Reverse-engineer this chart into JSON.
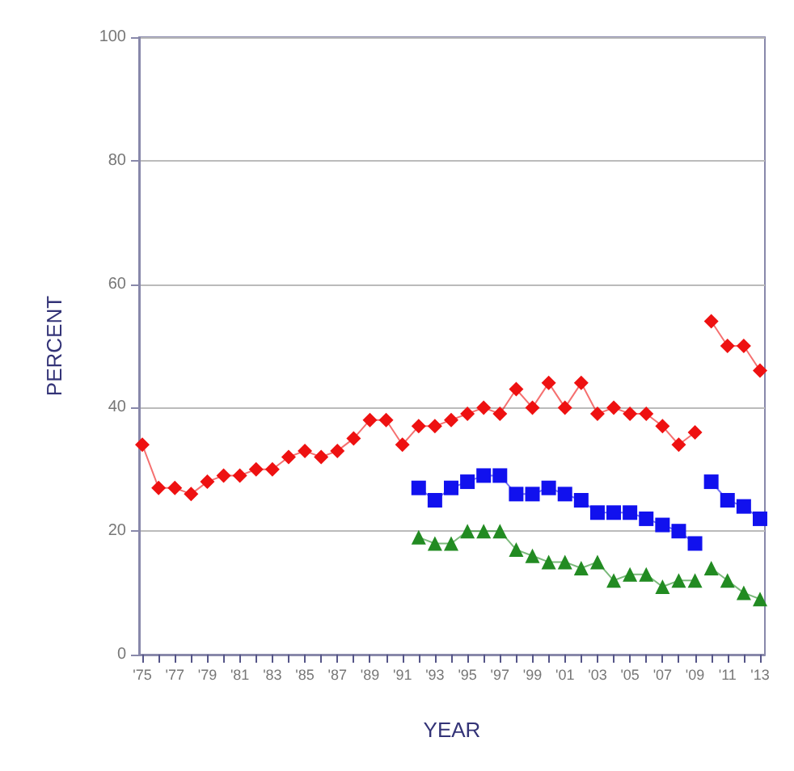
{
  "chart_data": {
    "type": "line",
    "xlabel": "YEAR",
    "ylabel": "PERCENT",
    "xlim": [
      1974.8,
      2013.3
    ],
    "ylim": [
      0,
      100
    ],
    "yticks": [
      0,
      20,
      40,
      60,
      80,
      100
    ],
    "xticks": [
      {
        "value": 1975,
        "label": "'75"
      },
      {
        "value": 1976,
        "label": null
      },
      {
        "value": 1977,
        "label": "'77"
      },
      {
        "value": 1978,
        "label": null
      },
      {
        "value": 1979,
        "label": "'79"
      },
      {
        "value": 1980,
        "label": null
      },
      {
        "value": 1981,
        "label": "'81"
      },
      {
        "value": 1982,
        "label": null
      },
      {
        "value": 1983,
        "label": "'83"
      },
      {
        "value": 1984,
        "label": null
      },
      {
        "value": 1985,
        "label": "'85"
      },
      {
        "value": 1986,
        "label": null
      },
      {
        "value": 1987,
        "label": "'87"
      },
      {
        "value": 1988,
        "label": null
      },
      {
        "value": 1989,
        "label": "'89"
      },
      {
        "value": 1990,
        "label": null
      },
      {
        "value": 1991,
        "label": "'91"
      },
      {
        "value": 1992,
        "label": null
      },
      {
        "value": 1993,
        "label": "'93"
      },
      {
        "value": 1994,
        "label": null
      },
      {
        "value": 1995,
        "label": "'95"
      },
      {
        "value": 1996,
        "label": null
      },
      {
        "value": 1997,
        "label": "'97"
      },
      {
        "value": 1998,
        "label": null
      },
      {
        "value": 1999,
        "label": "'99"
      },
      {
        "value": 2000,
        "label": null
      },
      {
        "value": 2001,
        "label": "'01"
      },
      {
        "value": 2002,
        "label": null
      },
      {
        "value": 2003,
        "label": "'03"
      },
      {
        "value": 2004,
        "label": null
      },
      {
        "value": 2005,
        "label": "'05"
      },
      {
        "value": 2006,
        "label": null
      },
      {
        "value": 2007,
        "label": "'07"
      },
      {
        "value": 2008,
        "label": null
      },
      {
        "value": 2009,
        "label": "'09"
      },
      {
        "value": 2010,
        "label": null
      },
      {
        "value": 2011,
        "label": "'11"
      },
      {
        "value": 2012,
        "label": null
      },
      {
        "value": 2013,
        "label": "'13"
      }
    ],
    "grid": "y",
    "line_style": "solid",
    "series": [
      {
        "color": "#ee1111",
        "marker": "diamond",
        "x": [
          1975,
          1976,
          1977,
          1978,
          1979,
          1980,
          1981,
          1982,
          1983,
          1984,
          1985,
          1986,
          1987,
          1988,
          1989,
          1990,
          1991,
          1992,
          1993,
          1994,
          1995,
          1996,
          1997,
          1998,
          1999,
          2000,
          2001,
          2002,
          2003,
          2004,
          2005,
          2006,
          2007,
          2008,
          2009
        ],
        "values": [
          34,
          27,
          27,
          26,
          28,
          29,
          29,
          30,
          30,
          32,
          33,
          32,
          33,
          35,
          38,
          38,
          34,
          37,
          37,
          38,
          39,
          40,
          39,
          43,
          40,
          44,
          40,
          44,
          39,
          40,
          39,
          39,
          37,
          34,
          36
        ]
      },
      {
        "color": "#ee1111",
        "marker": "diamond",
        "x": [
          2010,
          2011,
          2012,
          2013
        ],
        "values": [
          54,
          50,
          50,
          46
        ]
      },
      {
        "color": "#1111ee",
        "marker": "square",
        "x": [
          1992,
          1993,
          1994,
          1995,
          1996,
          1997,
          1998,
          1999,
          2000,
          2001,
          2002,
          2003,
          2004,
          2005,
          2006,
          2007,
          2008,
          2009
        ],
        "values": [
          27,
          25,
          27,
          28,
          29,
          29,
          26,
          26,
          27,
          26,
          25,
          23,
          23,
          23,
          22,
          21,
          20,
          18
        ]
      },
      {
        "color": "#1111ee",
        "marker": "square",
        "x": [
          2010,
          2011,
          2012,
          2013
        ],
        "values": [
          28,
          25,
          24,
          22
        ]
      },
      {
        "color": "#228b22",
        "marker": "triangle",
        "x": [
          1992,
          1993,
          1994,
          1995,
          1996,
          1997,
          1998,
          1999,
          2000,
          2001,
          2002,
          2003,
          2004,
          2005,
          2006,
          2007,
          2008,
          2009
        ],
        "values": [
          19,
          18,
          18,
          20,
          20,
          20,
          17,
          16,
          15,
          15,
          14,
          15,
          12,
          13,
          13,
          11,
          12,
          12
        ]
      },
      {
        "color": "#228b22",
        "marker": "triangle",
        "x": [
          2010,
          2011,
          2012,
          2013
        ],
        "values": [
          14,
          12,
          10,
          9
        ]
      }
    ]
  }
}
